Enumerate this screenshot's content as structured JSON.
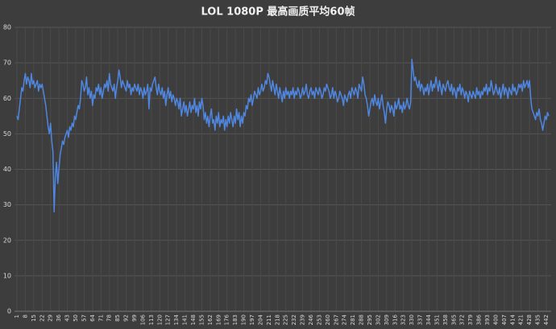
{
  "chart_data": {
    "type": "line",
    "title": "LOL 1080P 最高画质平均60帧",
    "x": [
      1,
      2,
      3,
      4,
      5,
      6,
      7,
      8,
      9,
      10,
      11,
      12,
      13,
      14,
      15,
      16,
      17,
      18,
      19,
      20,
      21,
      22,
      23,
      24,
      25,
      26,
      27,
      28,
      29,
      30,
      31,
      32,
      33,
      34,
      35,
      36,
      37,
      38,
      39,
      40,
      41,
      42,
      43,
      44,
      45,
      46,
      47,
      48,
      49,
      50,
      51,
      52,
      53,
      54,
      55,
      56,
      57,
      58,
      59,
      60,
      61,
      62,
      63,
      64,
      65,
      66,
      67,
      68,
      69,
      70,
      71,
      72,
      73,
      74,
      75,
      76,
      77,
      78,
      79,
      80,
      81,
      82,
      83,
      84,
      85,
      86,
      87,
      88,
      89,
      90,
      91,
      92,
      93,
      94,
      95,
      96,
      97,
      98,
      99,
      100,
      101,
      102,
      103,
      104,
      105,
      106,
      107,
      108,
      109,
      110,
      111,
      112,
      113,
      114,
      115,
      116,
      117,
      118,
      119,
      120,
      121,
      122,
      123,
      124,
      125,
      126,
      127,
      128,
      129,
      130,
      131,
      132,
      133,
      134,
      135,
      136,
      137,
      138,
      139,
      140,
      141,
      142,
      143,
      144,
      145,
      146,
      147,
      148,
      149,
      150,
      151,
      152,
      153,
      154,
      155,
      156,
      157,
      158,
      159,
      160,
      161,
      162,
      163,
      164,
      165,
      166,
      167,
      168,
      169,
      170,
      171,
      172,
      173,
      174,
      175,
      176,
      177,
      178,
      179,
      180,
      181,
      182,
      183,
      184,
      185,
      186,
      187,
      188,
      189,
      190,
      191,
      192,
      193,
      194,
      195,
      196,
      197,
      198,
      199,
      200,
      201,
      202,
      203,
      204,
      205,
      206,
      207,
      208,
      209,
      210,
      211,
      212,
      213,
      214,
      215,
      216,
      217,
      218,
      219,
      220,
      221,
      222,
      223,
      224,
      225,
      226,
      227,
      228,
      229,
      230,
      231,
      232,
      233,
      234,
      235,
      236,
      237,
      238,
      239,
      240,
      241,
      242,
      243,
      244,
      245,
      246,
      247,
      248,
      249,
      250,
      251,
      252,
      253,
      254,
      255,
      256,
      257,
      258,
      259,
      260,
      261,
      262,
      263,
      264,
      265,
      266,
      267,
      268,
      269,
      270,
      271,
      272,
      273,
      274,
      275,
      276,
      277,
      278,
      279,
      280,
      281,
      282,
      283,
      284,
      285,
      286,
      287,
      288,
      289,
      290,
      291,
      292,
      293,
      294,
      295,
      296,
      297,
      298,
      299,
      300,
      301,
      302,
      303,
      304,
      305,
      306,
      307,
      308,
      309,
      310,
      311,
      312,
      313,
      314,
      315,
      316,
      317,
      318,
      319,
      320,
      321,
      322,
      323,
      324,
      325,
      326,
      327,
      328,
      329,
      330,
      331,
      332,
      333,
      334,
      335,
      336,
      337,
      338,
      339,
      340,
      341,
      342,
      343,
      344,
      345,
      346,
      347,
      348,
      349,
      350,
      351,
      352,
      353,
      354,
      355,
      356,
      357,
      358,
      359,
      360,
      361,
      362,
      363,
      364,
      365,
      366,
      367,
      368,
      369,
      370,
      371,
      372,
      373,
      374,
      375,
      376,
      377,
      378,
      379,
      380,
      381,
      382,
      383,
      384,
      385,
      386,
      387,
      388,
      389,
      390,
      391,
      392,
      393,
      394,
      395,
      396,
      397,
      398,
      399,
      400,
      401,
      402,
      403,
      404,
      405,
      406,
      407,
      408,
      409,
      410,
      411,
      412,
      413,
      414,
      415,
      416,
      417,
      418,
      419,
      420,
      421,
      422,
      423,
      424,
      425,
      426,
      427,
      428,
      429,
      430,
      431,
      432,
      433,
      434,
      435,
      436,
      437,
      438,
      439,
      440,
      441,
      442,
      443,
      444
    ],
    "series": [
      {
        "color": "#4f86e0",
        "values": [
          55,
          54,
          57,
          60,
          63,
          62,
          65,
          67,
          64,
          66,
          65,
          63,
          67,
          64,
          65,
          63,
          64,
          65,
          62,
          64,
          63,
          64,
          62,
          60,
          58,
          55,
          52,
          50,
          53,
          48,
          45,
          28,
          38,
          42,
          36,
          40,
          44,
          46,
          48,
          47,
          49,
          50,
          51,
          49,
          52,
          51,
          53,
          52,
          55,
          54,
          56,
          58,
          57,
          60,
          65,
          64,
          62,
          63,
          66,
          61,
          63,
          60,
          62,
          58,
          61,
          60,
          63,
          62,
          64,
          61,
          63,
          60,
          62,
          64,
          63,
          65,
          62,
          67,
          64,
          63,
          62,
          64,
          60,
          63,
          65,
          68,
          66,
          63,
          65,
          64,
          63,
          62,
          65,
          63,
          64,
          61,
          63,
          62,
          64,
          63,
          62,
          64,
          61,
          63,
          62,
          60,
          63,
          61,
          62,
          64,
          57,
          63,
          62,
          64,
          65,
          66,
          63,
          61,
          64,
          62,
          61,
          63,
          60,
          62,
          58,
          61,
          63,
          60,
          62,
          59,
          61,
          60,
          58,
          60,
          59,
          57,
          60,
          55,
          57,
          59,
          56,
          58,
          55,
          57,
          59,
          56,
          58,
          57,
          60,
          56,
          58,
          55,
          59,
          57,
          60,
          58,
          54,
          56,
          53,
          55,
          52,
          55,
          57,
          53,
          54,
          51,
          55,
          53,
          56,
          52,
          54,
          53,
          55,
          51,
          54,
          52,
          55,
          53,
          56,
          54,
          52,
          55,
          53,
          57,
          54,
          56,
          52,
          55,
          53,
          56,
          55,
          58,
          57,
          60,
          59,
          61,
          58,
          60,
          62,
          61,
          60,
          63,
          61,
          62,
          64,
          62,
          63,
          65,
          64,
          67,
          66,
          64,
          62,
          65,
          63,
          61,
          64,
          62,
          60,
          63,
          61,
          59,
          62,
          60,
          63,
          61,
          62,
          60,
          62,
          61,
          63,
          60,
          62,
          61,
          63,
          62,
          60,
          61,
          63,
          61,
          62,
          64,
          61,
          60,
          62,
          63,
          61,
          62,
          60,
          63,
          62,
          61,
          63,
          62,
          60,
          61,
          63,
          62,
          64,
          63,
          62,
          60,
          61,
          63,
          60,
          62,
          61,
          59,
          60,
          62,
          61,
          60,
          58,
          61,
          60,
          59,
          61,
          62,
          60,
          63,
          62,
          61,
          63,
          62,
          60,
          64,
          63,
          62,
          66,
          64,
          61,
          60,
          58,
          55,
          57,
          59,
          60,
          58,
          61,
          59,
          58,
          60,
          57,
          59,
          61,
          58,
          56,
          53,
          57,
          59,
          58,
          56,
          58,
          57,
          55,
          59,
          57,
          58,
          60,
          57,
          58,
          56,
          59,
          57,
          58,
          60,
          58,
          57,
          59,
          71,
          68,
          65,
          66,
          64,
          63,
          65,
          62,
          64,
          63,
          61,
          63,
          62,
          64,
          61,
          63,
          65,
          62,
          64,
          63,
          66,
          64,
          62,
          65,
          63,
          61,
          64,
          63,
          62,
          64,
          65,
          63,
          62,
          64,
          61,
          63,
          62,
          60,
          63,
          62,
          64,
          61,
          63,
          62,
          60,
          62,
          61,
          59,
          62,
          61,
          60,
          62,
          61,
          60,
          63,
          61,
          62,
          60,
          62,
          61,
          63,
          62,
          64,
          61,
          63,
          62,
          65,
          63,
          61,
          62,
          64,
          62,
          61,
          63,
          60,
          62,
          64,
          61,
          63,
          62,
          60,
          63,
          62,
          61,
          64,
          62,
          63,
          61,
          62,
          64,
          63,
          64,
          62,
          65,
          63,
          64,
          65,
          63,
          65,
          60,
          57,
          56,
          55,
          54,
          56,
          55,
          57,
          54,
          53,
          51,
          53,
          55,
          54,
          56,
          55
        ]
      }
    ],
    "xlim": [
      1,
      444
    ],
    "xticks": [
      1,
      8,
      15,
      22,
      29,
      36,
      43,
      50,
      57,
      64,
      71,
      78,
      85,
      92,
      99,
      106,
      113,
      120,
      127,
      134,
      141,
      148,
      155,
      162,
      169,
      176,
      183,
      190,
      197,
      204,
      211,
      218,
      225,
      232,
      239,
      246,
      253,
      260,
      267,
      274,
      281,
      288,
      295,
      302,
      309,
      316,
      323,
      330,
      337,
      344,
      351,
      358,
      365,
      372,
      379,
      386,
      393,
      400,
      407,
      414,
      421,
      428,
      435,
      442
    ],
    "ylim": [
      0,
      80
    ],
    "yticks": [
      0,
      10,
      20,
      30,
      40,
      50,
      60,
      70,
      80
    ],
    "grid": true
  }
}
